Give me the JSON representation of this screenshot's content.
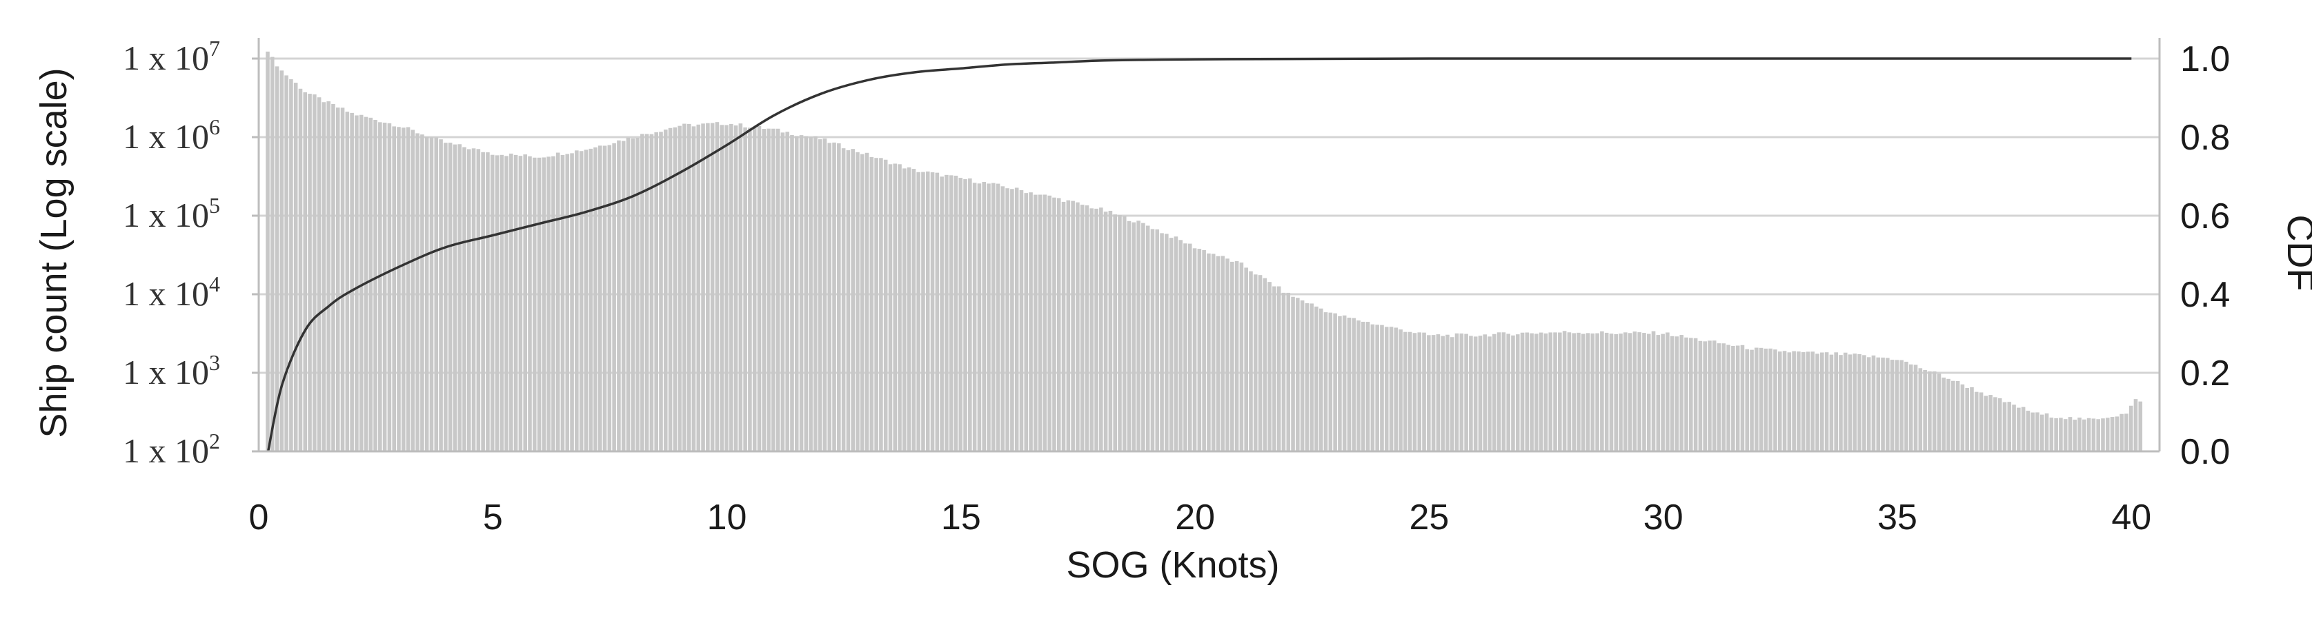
{
  "chart_data": {
    "type": "bar",
    "xlabel": "SOG (Knots)",
    "ylabel": "Ship count (Log scale)",
    "y2label": "CDF",
    "xlim": [
      0,
      40.5
    ],
    "xticks": [
      "0",
      "5",
      "10",
      "15",
      "20",
      "25",
      "30",
      "35",
      "40"
    ],
    "ylim": [
      100,
      10000000
    ],
    "yscale": "log",
    "yticks": [
      {
        "base": "1 x 10",
        "exp": "7"
      },
      {
        "base": "1 x 10",
        "exp": "6"
      },
      {
        "base": "1 x 10",
        "exp": "5"
      },
      {
        "base": "1 x 10",
        "exp": "4"
      },
      {
        "base": "1 x 10",
        "exp": "3"
      },
      {
        "base": "1 x 10",
        "exp": "2"
      }
    ],
    "y2lim": [
      0,
      1
    ],
    "y2ticks": [
      "1.0",
      "0.8",
      "0.6",
      "0.4",
      "0.2",
      "0.0"
    ],
    "grid": true,
    "series": [
      {
        "kind": "histogram",
        "color": "#c8c8c8",
        "x": [
          0.2,
          0.3,
          0.5,
          1,
          1.5,
          2,
          3,
          4,
          5,
          6,
          7,
          8,
          9,
          10,
          11,
          12,
          13,
          14,
          15,
          16,
          17,
          18,
          19,
          20,
          21,
          22,
          23,
          24,
          25,
          26,
          27,
          28,
          29,
          30,
          31,
          32,
          33,
          34,
          35,
          36,
          37,
          38,
          39,
          39.9,
          40.1
        ],
        "values": [
          13000000,
          10000000,
          7000000,
          3800000,
          2700000,
          2000000,
          1400000,
          850000,
          620000,
          560000,
          700000,
          1000000,
          1400000,
          1500000,
          1250000,
          950000,
          600000,
          380000,
          300000,
          230000,
          170000,
          120000,
          75000,
          40000,
          24000,
          10000,
          5500,
          4000,
          3000,
          3000,
          3200,
          3300,
          3200,
          3200,
          2500,
          2000,
          1800,
          1700,
          1500,
          900,
          500,
          300,
          250,
          300,
          450
        ]
      },
      {
        "kind": "cdf",
        "color": "#333333",
        "x": [
          0.2,
          0.5,
          1,
          1.5,
          2,
          3,
          4,
          5,
          6,
          7,
          8,
          9,
          10,
          11,
          12,
          13,
          14,
          15,
          16,
          17,
          18,
          19,
          20,
          22,
          25,
          30,
          40
        ],
        "values": [
          0.0,
          0.17,
          0.31,
          0.37,
          0.41,
          0.47,
          0.52,
          0.55,
          0.58,
          0.61,
          0.65,
          0.71,
          0.78,
          0.855,
          0.91,
          0.945,
          0.965,
          0.975,
          0.985,
          0.99,
          0.995,
          0.997,
          0.998,
          0.999,
          1.0,
          1.0,
          1.0
        ]
      }
    ]
  }
}
